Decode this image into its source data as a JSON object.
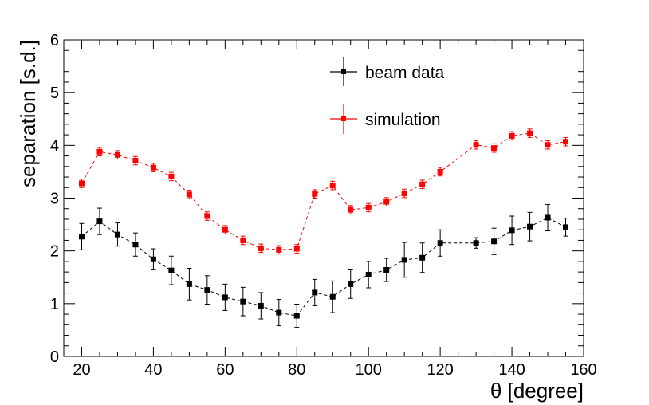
{
  "chart_data": {
    "type": "scatter",
    "xlabel": "θ [degree]",
    "ylabel": "separation [s.d.]",
    "xlim": [
      15,
      160
    ],
    "ylim": [
      0,
      6
    ],
    "x_ticks": [
      "20",
      "40",
      "60",
      "80",
      "100",
      "120",
      "140",
      "160"
    ],
    "y_ticks": [
      "0",
      "1",
      "2",
      "3",
      "4",
      "5",
      "6"
    ],
    "legend_position": "top-center",
    "series": [
      {
        "name": "beam data",
        "color": "#000000",
        "x": [
          20,
          25,
          30,
          35,
          40,
          45,
          50,
          55,
          60,
          65,
          70,
          75,
          80,
          85,
          90,
          95,
          100,
          105,
          110,
          115,
          120,
          130,
          135,
          140,
          145,
          150,
          155
        ],
        "y": [
          2.27,
          2.56,
          2.31,
          2.12,
          1.84,
          1.63,
          1.37,
          1.26,
          1.12,
          1.04,
          0.96,
          0.83,
          0.77,
          1.21,
          1.13,
          1.37,
          1.55,
          1.64,
          1.83,
          1.87,
          2.15,
          2.15,
          2.18,
          2.39,
          2.46,
          2.63,
          2.45
        ],
        "err": [
          0.25,
          0.25,
          0.22,
          0.22,
          0.2,
          0.27,
          0.3,
          0.27,
          0.25,
          0.27,
          0.25,
          0.25,
          0.22,
          0.25,
          0.3,
          0.27,
          0.25,
          0.22,
          0.33,
          0.28,
          0.25,
          0.1,
          0.25,
          0.27,
          0.27,
          0.25,
          0.17
        ]
      },
      {
        "name": "simulation",
        "color": "#ff0000",
        "x": [
          20,
          25,
          30,
          35,
          40,
          45,
          50,
          55,
          60,
          65,
          70,
          75,
          80,
          85,
          90,
          95,
          100,
          105,
          110,
          115,
          120,
          130,
          135,
          140,
          145,
          150,
          155
        ],
        "y": [
          3.28,
          3.88,
          3.82,
          3.71,
          3.58,
          3.41,
          3.07,
          2.66,
          2.4,
          2.2,
          2.05,
          2.02,
          2.04,
          3.08,
          3.24,
          2.78,
          2.82,
          2.93,
          3.09,
          3.26,
          3.5,
          4.01,
          3.95,
          4.18,
          4.23,
          4.01,
          4.07
        ]
      }
    ]
  }
}
